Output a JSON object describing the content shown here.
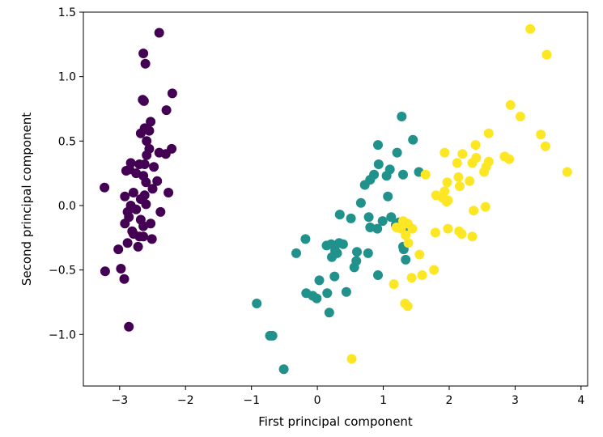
{
  "chart_data": {
    "type": "scatter",
    "title": "",
    "xlabel": "First principal component",
    "ylabel": "Second principal component",
    "xlim": [
      -3.55,
      4.1
    ],
    "ylim": [
      -1.4,
      1.5
    ],
    "x_ticks": [
      -3,
      -2,
      -1,
      0,
      1,
      2,
      3,
      4
    ],
    "x_tick_labels": [
      "−3",
      "−2",
      "−1",
      "0",
      "1",
      "2",
      "3",
      "4"
    ],
    "y_ticks": [
      -1.0,
      -0.5,
      0.0,
      0.5,
      1.0,
      1.5
    ],
    "y_tick_labels": [
      "−1.0",
      "−0.5",
      "0.0",
      "0.5",
      "1.0",
      "1.5"
    ],
    "grid": false,
    "colors": {
      "group_1": "#440154",
      "group_2": "#21918c",
      "group_3": "#fde725"
    },
    "series": [
      {
        "color_key": "group_1",
        "points": [
          [
            -2.4,
            1.34
          ],
          [
            -2.64,
            1.18
          ],
          [
            -2.61,
            1.1
          ],
          [
            -2.2,
            0.87
          ],
          [
            -2.65,
            0.82
          ],
          [
            -2.63,
            0.81
          ],
          [
            -2.29,
            0.74
          ],
          [
            -2.53,
            0.65
          ],
          [
            -2.62,
            0.6
          ],
          [
            -2.55,
            0.58
          ],
          [
            -2.68,
            0.56
          ],
          [
            -2.59,
            0.5
          ],
          [
            -2.55,
            0.44
          ],
          [
            -2.21,
            0.44
          ],
          [
            -2.4,
            0.41
          ],
          [
            -2.3,
            0.4
          ],
          [
            -2.59,
            0.39
          ],
          [
            -2.83,
            0.33
          ],
          [
            -2.7,
            0.32
          ],
          [
            -2.62,
            0.32
          ],
          [
            -2.48,
            0.3
          ],
          [
            -2.85,
            0.28
          ],
          [
            -2.9,
            0.27
          ],
          [
            -2.75,
            0.25
          ],
          [
            -2.64,
            0.23
          ],
          [
            -2.43,
            0.19
          ],
          [
            -2.6,
            0.18
          ],
          [
            -3.23,
            0.14
          ],
          [
            -2.5,
            0.13
          ],
          [
            -2.79,
            0.1
          ],
          [
            -2.26,
            0.1
          ],
          [
            -2.62,
            0.08
          ],
          [
            -2.92,
            0.07
          ],
          [
            -2.68,
            0.05
          ],
          [
            -2.6,
            0.01
          ],
          [
            -2.83,
            0.0
          ],
          [
            -2.75,
            -0.03
          ],
          [
            -2.88,
            -0.05
          ],
          [
            -2.38,
            -0.05
          ],
          [
            -2.86,
            -0.09
          ],
          [
            -2.68,
            -0.11
          ],
          [
            -2.53,
            -0.14
          ],
          [
            -2.92,
            -0.14
          ],
          [
            -2.64,
            -0.16
          ],
          [
            -2.81,
            -0.2
          ],
          [
            -2.79,
            -0.22
          ],
          [
            -2.64,
            -0.24
          ],
          [
            -2.7,
            -0.24
          ],
          [
            -2.51,
            -0.26
          ],
          [
            -2.88,
            -0.29
          ],
          [
            -2.72,
            -0.32
          ],
          [
            -3.02,
            -0.34
          ],
          [
            -3.22,
            -0.51
          ],
          [
            -2.98,
            -0.49
          ],
          [
            -2.93,
            -0.57
          ],
          [
            -2.86,
            -0.94
          ]
        ]
      },
      {
        "color_key": "group_2",
        "points": [
          [
            1.28,
            0.69
          ],
          [
            1.45,
            0.51
          ],
          [
            0.92,
            0.47
          ],
          [
            1.21,
            0.41
          ],
          [
            0.93,
            0.32
          ],
          [
            1.1,
            0.28
          ],
          [
            1.54,
            0.26
          ],
          [
            0.86,
            0.24
          ],
          [
            1.3,
            0.24
          ],
          [
            1.05,
            0.23
          ],
          [
            0.8,
            0.2
          ],
          [
            0.72,
            0.16
          ],
          [
            0.66,
            0.02
          ],
          [
            1.07,
            0.07
          ],
          [
            0.78,
            -0.09
          ],
          [
            0.34,
            -0.07
          ],
          [
            0.51,
            -0.1
          ],
          [
            0.99,
            -0.12
          ],
          [
            0.8,
            -0.17
          ],
          [
            0.91,
            -0.18
          ],
          [
            1.24,
            -0.13
          ],
          [
            1.19,
            -0.15
          ],
          [
            1.39,
            -0.17
          ],
          [
            1.31,
            -0.34
          ],
          [
            1.3,
            -0.32
          ],
          [
            1.34,
            -0.42
          ],
          [
            1.12,
            -0.09
          ],
          [
            -0.18,
            -0.26
          ],
          [
            0.21,
            -0.3
          ],
          [
            0.33,
            -0.29
          ],
          [
            0.39,
            -0.3
          ],
          [
            0.27,
            -0.35
          ],
          [
            0.14,
            -0.31
          ],
          [
            0.3,
            -0.37
          ],
          [
            0.22,
            -0.4
          ],
          [
            0.6,
            -0.36
          ],
          [
            0.77,
            -0.37
          ],
          [
            0.59,
            -0.43
          ],
          [
            0.56,
            -0.48
          ],
          [
            0.92,
            -0.54
          ],
          [
            0.26,
            -0.55
          ],
          [
            -0.32,
            -0.37
          ],
          [
            0.03,
            -0.58
          ],
          [
            -0.17,
            -0.68
          ],
          [
            -0.07,
            -0.7
          ],
          [
            -0.01,
            -0.72
          ],
          [
            0.15,
            -0.68
          ],
          [
            0.44,
            -0.67
          ],
          [
            0.18,
            -0.83
          ],
          [
            -0.92,
            -0.76
          ],
          [
            -0.72,
            -1.01
          ],
          [
            -0.68,
            -1.01
          ],
          [
            -0.51,
            -1.27
          ]
        ]
      },
      {
        "color_key": "group_3",
        "points": [
          [
            3.23,
            1.37
          ],
          [
            3.48,
            1.17
          ],
          [
            2.93,
            0.78
          ],
          [
            3.08,
            0.69
          ],
          [
            2.6,
            0.56
          ],
          [
            3.39,
            0.55
          ],
          [
            3.46,
            0.46
          ],
          [
            2.4,
            0.47
          ],
          [
            2.2,
            0.4
          ],
          [
            1.93,
            0.41
          ],
          [
            2.41,
            0.37
          ],
          [
            2.84,
            0.38
          ],
          [
            2.91,
            0.36
          ],
          [
            2.6,
            0.34
          ],
          [
            2.35,
            0.33
          ],
          [
            2.12,
            0.33
          ],
          [
            2.56,
            0.3
          ],
          [
            2.53,
            0.26
          ],
          [
            1.64,
            0.24
          ],
          [
            3.79,
            0.26
          ],
          [
            2.14,
            0.22
          ],
          [
            1.97,
            0.18
          ],
          [
            2.31,
            0.19
          ],
          [
            2.16,
            0.15
          ],
          [
            1.93,
            0.11
          ],
          [
            1.8,
            0.08
          ],
          [
            1.9,
            0.06
          ],
          [
            1.98,
            0.04
          ],
          [
            1.96,
            0.03
          ],
          [
            2.55,
            -0.01
          ],
          [
            2.37,
            -0.04
          ],
          [
            1.3,
            -0.12
          ],
          [
            1.37,
            -0.14
          ],
          [
            1.2,
            -0.17
          ],
          [
            1.27,
            -0.18
          ],
          [
            1.44,
            -0.18
          ],
          [
            1.34,
            -0.23
          ],
          [
            1.79,
            -0.21
          ],
          [
            1.98,
            -0.18
          ],
          [
            2.15,
            -0.2
          ],
          [
            2.19,
            -0.22
          ],
          [
            2.35,
            -0.24
          ],
          [
            1.38,
            -0.29
          ],
          [
            1.55,
            -0.38
          ],
          [
            1.77,
            -0.5
          ],
          [
            1.59,
            -0.54
          ],
          [
            1.43,
            -0.56
          ],
          [
            1.16,
            -0.61
          ],
          [
            1.33,
            -0.76
          ],
          [
            1.37,
            -0.78
          ],
          [
            0.52,
            -1.19
          ]
        ]
      }
    ]
  }
}
